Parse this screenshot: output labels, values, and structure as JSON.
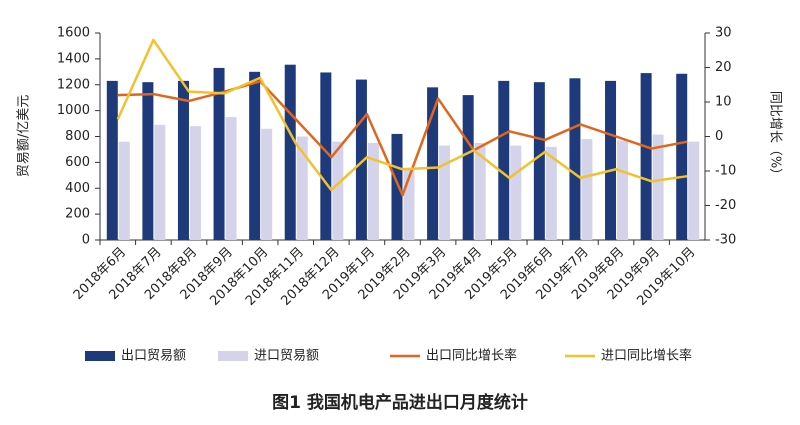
{
  "chart_data": {
    "type": "bar",
    "title": "图1 我国机电产品进出口月度统计",
    "y_label": "贸易额/亿美元",
    "y2_label": "同比增长（%）",
    "categories": [
      "2018年6月",
      "2018年7月",
      "2018年8月",
      "2018年9月",
      "2018年10月",
      "2018年11月",
      "2018年12月",
      "2019年1月",
      "2019年2月",
      "2019年3月",
      "2019年4月",
      "2019年5月",
      "2019年6月",
      "2019年7月",
      "2019年8月",
      "2019年9月",
      "2019年10月"
    ],
    "series": [
      {
        "name": "出口贸易额",
        "type": "bar",
        "color": "#1f3a7a",
        "values": [
          1230,
          1220,
          1230,
          1330,
          1300,
          1355,
          1295,
          1240,
          820,
          1180,
          1120,
          1230,
          1220,
          1250,
          1230,
          1290,
          1285
        ]
      },
      {
        "name": "进口贸易额",
        "type": "bar",
        "color": "#d4d3ea",
        "values": [
          760,
          890,
          880,
          950,
          860,
          800,
          760,
          750,
          540,
          730,
          750,
          730,
          720,
          780,
          770,
          815,
          760
        ]
      },
      {
        "name": "出口同比增长率",
        "type": "line",
        "axis": "y2",
        "color": "#e0661c",
        "values": [
          12,
          12.3,
          10.3,
          13,
          16,
          5,
          -6,
          6.5,
          -17,
          11,
          -4,
          1.5,
          -1,
          3.5,
          0,
          -3.5,
          -1.5
        ]
      },
      {
        "name": "进口同比增长率",
        "type": "line",
        "axis": "y2",
        "color": "#f2c12e",
        "values": [
          5,
          28,
          13,
          12.5,
          17,
          -2,
          -15.5,
          -6,
          -9.5,
          -9,
          -4,
          -12,
          -4.5,
          -12,
          -9.5,
          -13,
          -11.5
        ]
      }
    ],
    "ylim": [
      0,
      1600
    ],
    "yticks": [
      0,
      200,
      400,
      600,
      800,
      1000,
      1200,
      1400,
      1600
    ],
    "y2lim": [
      -30,
      30
    ],
    "y2ticks": [
      -30,
      -20,
      -10,
      0,
      10,
      20,
      30
    ]
  }
}
